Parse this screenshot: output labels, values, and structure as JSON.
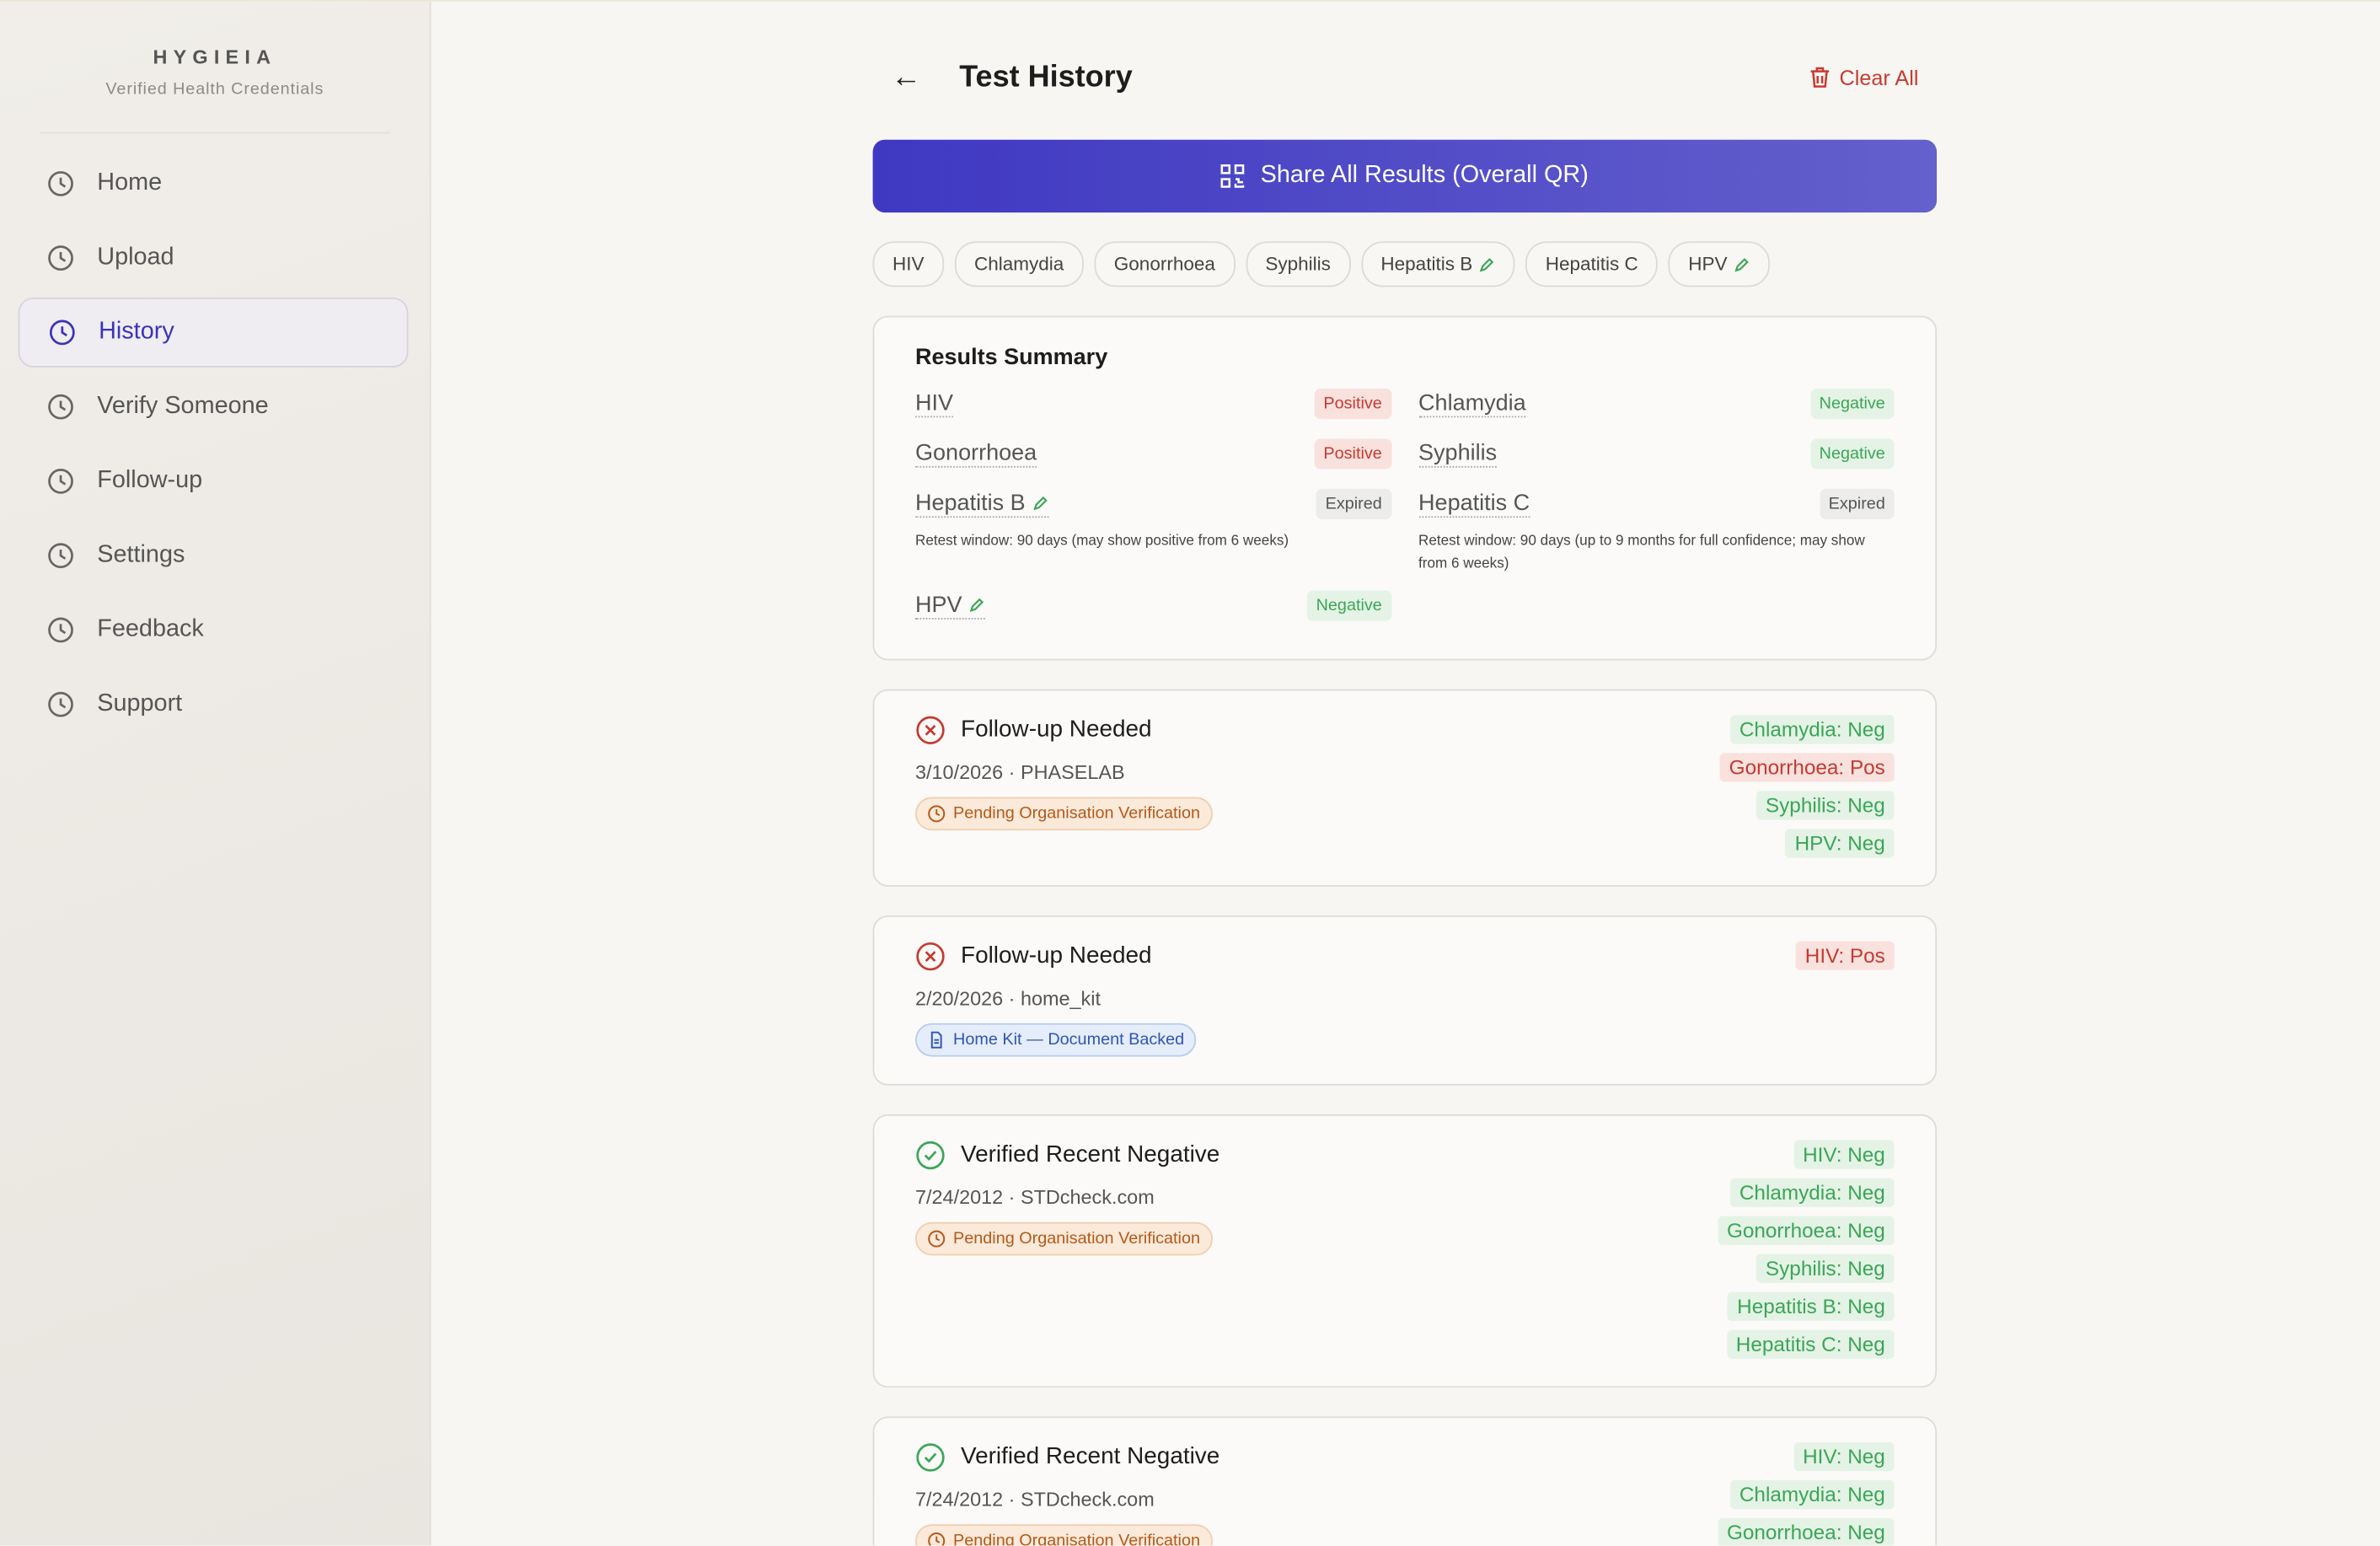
{
  "brand": {
    "name": "HYGIEIA",
    "tagline": "Verified Health Credentials"
  },
  "nav": {
    "items": [
      "Home",
      "Upload",
      "History",
      "Verify Someone",
      "Follow-up",
      "Settings",
      "Feedback",
      "Support"
    ],
    "active": "History"
  },
  "header": {
    "title": "Test History",
    "clear": "Clear All",
    "share": "Share All Results (Overall QR)"
  },
  "filters": [
    {
      "label": "HIV"
    },
    {
      "label": "Chlamydia"
    },
    {
      "label": "Gonorrhoea"
    },
    {
      "label": "Syphilis"
    },
    {
      "label": "Hepatitis B",
      "edited": true
    },
    {
      "label": "Hepatitis C"
    },
    {
      "label": "HPV",
      "edited": true
    }
  ],
  "summary": {
    "title": "Results Summary",
    "items": [
      {
        "name": "HIV",
        "status": "Positive"
      },
      {
        "name": "Chlamydia",
        "status": "Negative"
      },
      {
        "name": "Gonorrhoea",
        "status": "Positive"
      },
      {
        "name": "Syphilis",
        "status": "Negative"
      },
      {
        "name": "Hepatitis B",
        "status": "Expired",
        "edited": true,
        "note": "Retest window: 90 days (may show positive from 6 weeks)"
      },
      {
        "name": "Hepatitis C",
        "status": "Expired",
        "note": "Retest window: 90 days (up to 9 months for full confidence; may show from 6 weeks)"
      },
      {
        "name": "HPV",
        "status": "Negative",
        "edited": true
      }
    ]
  },
  "records": [
    {
      "title": "Follow-up Needed",
      "ok": false,
      "date_source": "3/10/2026 · PHASELAB",
      "badge": "Pending Organisation Verification",
      "badge_kind": "pending",
      "results": [
        "Chlamydia: Neg",
        "Gonorrhoea: Pos",
        "Syphilis: Neg",
        "HPV: Neg"
      ]
    },
    {
      "title": "Follow-up Needed",
      "ok": false,
      "date_source": "2/20/2026 · home_kit",
      "badge": "Home Kit — Document Backed",
      "badge_kind": "doc",
      "results": [
        "HIV: Pos"
      ]
    },
    {
      "title": "Verified Recent Negative",
      "ok": true,
      "date_source": "7/24/2012 · STDcheck.com",
      "badge": "Pending Organisation Verification",
      "badge_kind": "pending",
      "results": [
        "HIV: Neg",
        "Chlamydia: Neg",
        "Gonorrhoea: Neg",
        "Syphilis: Neg",
        "Hepatitis B: Neg",
        "Hepatitis C: Neg"
      ]
    },
    {
      "title": "Verified Recent Negative",
      "ok": true,
      "date_source": "7/24/2012 · STDcheck.com",
      "badge": "Pending Organisation Verification",
      "badge_kind": "pending",
      "results": [
        "HIV: Neg",
        "Chlamydia: Neg",
        "Gonorrhoea: Neg"
      ]
    }
  ]
}
